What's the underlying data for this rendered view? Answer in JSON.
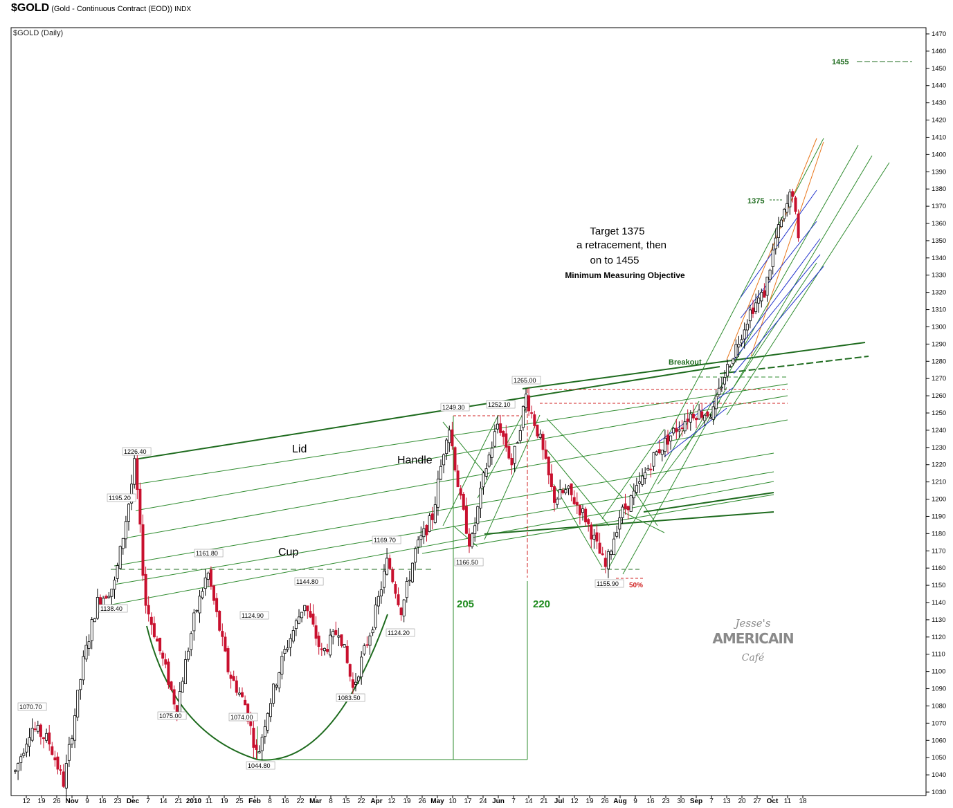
{
  "header": {
    "symbol": "$GOLD",
    "name": "(Gold - Continuous Contract (EOD))",
    "exchange": "INDX",
    "subtitle": "$GOLD (Daily)"
  },
  "chart_data": {
    "type": "candlestick",
    "y_axis_side": "right",
    "ylim": [
      1030,
      1475
    ],
    "y_ticks": [
      1030,
      1040,
      1050,
      1060,
      1070,
      1080,
      1090,
      1100,
      1110,
      1120,
      1130,
      1140,
      1150,
      1160,
      1170,
      1180,
      1190,
      1200,
      1210,
      1220,
      1230,
      1240,
      1250,
      1260,
      1270,
      1280,
      1290,
      1300,
      1310,
      1320,
      1330,
      1340,
      1350,
      1360,
      1370,
      1380,
      1390,
      1400,
      1410,
      1420,
      1430,
      1440,
      1450,
      1460,
      1470
    ],
    "x_ticks": [
      {
        "label": "12",
        "month": false
      },
      {
        "label": "19",
        "month": false
      },
      {
        "label": "26",
        "month": false
      },
      {
        "label": "Nov",
        "month": true
      },
      {
        "label": "9",
        "month": false
      },
      {
        "label": "16",
        "month": false
      },
      {
        "label": "23",
        "month": false
      },
      {
        "label": "Dec",
        "month": true
      },
      {
        "label": "7",
        "month": false
      },
      {
        "label": "14",
        "month": false
      },
      {
        "label": "21",
        "month": false
      },
      {
        "label": "2010",
        "month": true
      },
      {
        "label": "11",
        "month": false
      },
      {
        "label": "19",
        "month": false
      },
      {
        "label": "25",
        "month": false
      },
      {
        "label": "Feb",
        "month": true
      },
      {
        "label": "8",
        "month": false
      },
      {
        "label": "16",
        "month": false
      },
      {
        "label": "22",
        "month": false
      },
      {
        "label": "Mar",
        "month": true
      },
      {
        "label": "8",
        "month": false
      },
      {
        "label": "15",
        "month": false
      },
      {
        "label": "22",
        "month": false
      },
      {
        "label": "Apr",
        "month": true
      },
      {
        "label": "12",
        "month": false
      },
      {
        "label": "19",
        "month": false
      },
      {
        "label": "26",
        "month": false
      },
      {
        "label": "May",
        "month": true
      },
      {
        "label": "10",
        "month": false
      },
      {
        "label": "17",
        "month": false
      },
      {
        "label": "24",
        "month": false
      },
      {
        "label": "Jun",
        "month": true
      },
      {
        "label": "7",
        "month": false
      },
      {
        "label": "14",
        "month": false
      },
      {
        "label": "21",
        "month": false
      },
      {
        "label": "Jul",
        "month": true
      },
      {
        "label": "12",
        "month": false
      },
      {
        "label": "19",
        "month": false
      },
      {
        "label": "26",
        "month": false
      },
      {
        "label": "Aug",
        "month": true
      },
      {
        "label": "9",
        "month": false
      },
      {
        "label": "16",
        "month": false
      },
      {
        "label": "23",
        "month": false
      },
      {
        "label": "30",
        "month": false
      },
      {
        "label": "Sep",
        "month": true
      },
      {
        "label": "7",
        "month": false
      },
      {
        "label": "13",
        "month": false
      },
      {
        "label": "20",
        "month": false
      },
      {
        "label": "27",
        "month": false
      },
      {
        "label": "Oct",
        "month": true
      },
      {
        "label": "11",
        "month": false
      },
      {
        "label": "18",
        "month": false
      }
    ],
    "price_labels": [
      {
        "text": "1070.70",
        "value": 1070.7
      },
      {
        "text": "1226.40",
        "value": 1226.4
      },
      {
        "text": "1195.20",
        "value": 1195.2
      },
      {
        "text": "1138.40",
        "value": 1138.4
      },
      {
        "text": "1075.00",
        "value": 1075.0
      },
      {
        "text": "1161.80",
        "value": 1161.8
      },
      {
        "text": "1124.90",
        "value": 1124.9
      },
      {
        "text": "1074.00",
        "value": 1074.0
      },
      {
        "text": "1044.80",
        "value": 1044.8
      },
      {
        "text": "1144.80",
        "value": 1144.8
      },
      {
        "text": "1083.50",
        "value": 1083.5
      },
      {
        "text": "1169.70",
        "value": 1169.7
      },
      {
        "text": "1124.20",
        "value": 1124.2
      },
      {
        "text": "1249.30",
        "value": 1249.3
      },
      {
        "text": "1166.50",
        "value": 1166.5
      },
      {
        "text": "1252.10",
        "value": 1252.1
      },
      {
        "text": "1265.00",
        "value": 1265.0
      },
      {
        "text": "1155.90",
        "value": 1155.9
      }
    ],
    "annotations": {
      "lid": "Lid",
      "handle": "Handle",
      "cup": "Cup",
      "breakout": "Breakout",
      "measure_205": "205",
      "measure_220": "220",
      "fifty_pct": "50%",
      "target_1375": "1375",
      "target_1455": "1455",
      "note_line1": "Target 1375",
      "note_line2": "a retracement,  then",
      "note_line3": "on  to 1455",
      "note_line4": "Minimum Measuring Objective"
    },
    "watermark": {
      "line1": "Jesse's",
      "line2": "AMERICAIN",
      "line3": "Café"
    },
    "colors": {
      "up": "#000000",
      "down": "#c8102e",
      "trend": "#1a7a1a",
      "dark_green": "#1e6b1e",
      "orange": "#e8751a",
      "blue": "#2233cc",
      "red_dash": "#d02020"
    },
    "key_prices": [
      {
        "label": "1070.70",
        "value": 1070.7
      },
      {
        "label": "1226.40",
        "value": 1226.4
      },
      {
        "label": "1044.80",
        "value": 1044.8
      },
      {
        "label": "1265.00",
        "value": 1265.0
      },
      {
        "label": "1155.90",
        "value": 1155.9
      },
      {
        "label": "1375",
        "value": 1375
      },
      {
        "label": "1455",
        "value": 1455
      }
    ]
  }
}
